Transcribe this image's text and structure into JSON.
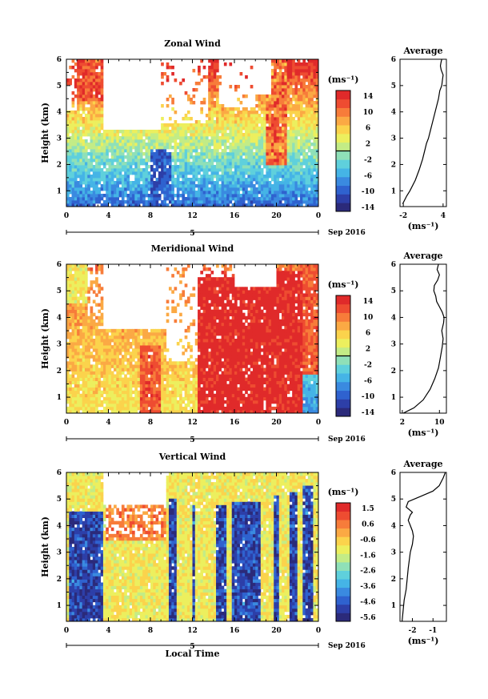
{
  "colors": {
    "palette": [
      "#2b2a7a",
      "#2d3fa8",
      "#2f62cf",
      "#3a8ae0",
      "#45b4e6",
      "#5fd0dc",
      "#8fe0b8",
      "#c3ec86",
      "#ecef5e",
      "#fbd34c",
      "#fba944",
      "#f77c3a",
      "#ee4c31",
      "#e02a2a"
    ],
    "missing": "#ffffff",
    "contour": "#000000",
    "profile_line": "#000000"
  },
  "x_axis_common": {
    "ticks": [
      "0",
      "4",
      "8",
      "12",
      "16",
      "20",
      "0"
    ],
    "day_marker": "5",
    "date_label": "Sep 2016",
    "xlabel": "Local Time"
  },
  "chart_data": [
    {
      "type": "heatmap",
      "title": "Zonal Wind",
      "ylabel": "Height (km)",
      "y_ticks": [
        "1",
        "2",
        "3",
        "4",
        "5",
        "6"
      ],
      "ylim": [
        0.4,
        6
      ],
      "xlim": [
        0,
        24
      ],
      "colorbar_unit": "(ms⁻¹)",
      "colorbar_labels": [
        "14",
        "10",
        "6",
        "2",
        "-2",
        "-6",
        "-10",
        "-14"
      ],
      "colorbar_range": [
        -16,
        16
      ],
      "field": "zonal"
    },
    {
      "type": "line",
      "title": "Average",
      "y_ticks": [
        "1",
        "2",
        "3",
        "4",
        "5",
        "6"
      ],
      "x_ticks": [
        "-2",
        "4"
      ],
      "xlim": [
        -2.5,
        4.5
      ],
      "ylim": [
        0.4,
        6
      ],
      "xlabel": "(ms⁻¹)",
      "series": [
        {
          "x": [
            -2.1,
            -1.5,
            -1.0,
            -0.2,
            0.4,
            0.9,
            1.3,
            1.5,
            1.8,
            2.1,
            2.4,
            2.7,
            3.0,
            3.3,
            3.5,
            3.8,
            3.9,
            4.0,
            3.7,
            3.6,
            3.7,
            3.8
          ],
          "y": [
            0.5,
            0.8,
            1.0,
            1.4,
            1.8,
            2.2,
            2.6,
            2.8,
            3.0,
            3.3,
            3.6,
            3.9,
            4.2,
            4.5,
            4.8,
            5.0,
            5.2,
            5.4,
            5.6,
            5.75,
            5.9,
            6.0
          ]
        }
      ]
    },
    {
      "type": "heatmap",
      "title": "Meridional Wind",
      "ylabel": "Height (km)",
      "y_ticks": [
        "1",
        "2",
        "3",
        "4",
        "5",
        "6"
      ],
      "ylim": [
        0.4,
        6
      ],
      "xlim": [
        0,
        24
      ],
      "colorbar_unit": "(ms⁻¹)",
      "colorbar_labels": [
        "14",
        "10",
        "6",
        "2",
        "-2",
        "-6",
        "-10",
        "-14"
      ],
      "colorbar_range": [
        -16,
        16
      ],
      "field": "meridional"
    },
    {
      "type": "line",
      "title": "Average",
      "y_ticks": [
        "1",
        "2",
        "3",
        "4",
        "5",
        "6"
      ],
      "x_ticks": [
        "2",
        "10"
      ],
      "xlim": [
        1.5,
        11.5
      ],
      "ylim": [
        0.4,
        6
      ],
      "xlabel": "(ms⁻¹)",
      "series": [
        {
          "x": [
            2.2,
            4.5,
            6.5,
            8.0,
            9.0,
            9.8,
            10.2,
            10.6,
            10.8,
            10.5,
            10.9,
            11.0,
            10.6,
            10.0,
            9.4,
            9.2,
            8.8,
            8.9,
            9.6,
            10.0,
            9.5,
            9.8
          ],
          "y": [
            0.4,
            0.6,
            0.9,
            1.3,
            1.7,
            2.1,
            2.5,
            2.9,
            3.2,
            3.5,
            3.8,
            4.0,
            4.2,
            4.4,
            4.6,
            4.8,
            5.0,
            5.2,
            5.4,
            5.6,
            5.8,
            6.0
          ]
        }
      ]
    },
    {
      "type": "heatmap",
      "title": "Vertical Wind",
      "ylabel": "Height (km)",
      "y_ticks": [
        "1",
        "2",
        "3",
        "4",
        "5",
        "6"
      ],
      "ylim": [
        0.4,
        6
      ],
      "xlim": [
        0,
        24
      ],
      "colorbar_unit": "(ms⁻¹)",
      "colorbar_labels": [
        "1.5",
        "0.6",
        "-0.6",
        "-1.6",
        "-2.6",
        "-3.6",
        "-4.6",
        "-5.6"
      ],
      "colorbar_range": [
        -6,
        2
      ],
      "field": "vertical"
    },
    {
      "type": "line",
      "title": "Average",
      "y_ticks": [
        "1",
        "2",
        "3",
        "4",
        "5",
        "6"
      ],
      "x_ticks": [
        "-2",
        "-1"
      ],
      "xlim": [
        -2.6,
        -0.35
      ],
      "ylim": [
        0.4,
        6
      ],
      "xlabel": "(ms⁻¹)",
      "series": [
        {
          "x": [
            -2.5,
            -2.45,
            -2.4,
            -2.3,
            -2.25,
            -2.2,
            -2.15,
            -2.1,
            -2.0,
            -1.95,
            -2.0,
            -2.1,
            -2.2,
            -2.1,
            -2.0,
            -2.3,
            -2.2,
            -1.6,
            -1.0,
            -0.7,
            -0.5,
            -0.4
          ],
          "y": [
            0.4,
            0.8,
            1.2,
            1.6,
            2.0,
            2.4,
            2.7,
            3.0,
            3.3,
            3.6,
            3.8,
            4.0,
            4.2,
            4.4,
            4.5,
            4.7,
            4.9,
            5.1,
            5.3,
            5.5,
            5.8,
            6.0
          ]
        }
      ]
    }
  ]
}
